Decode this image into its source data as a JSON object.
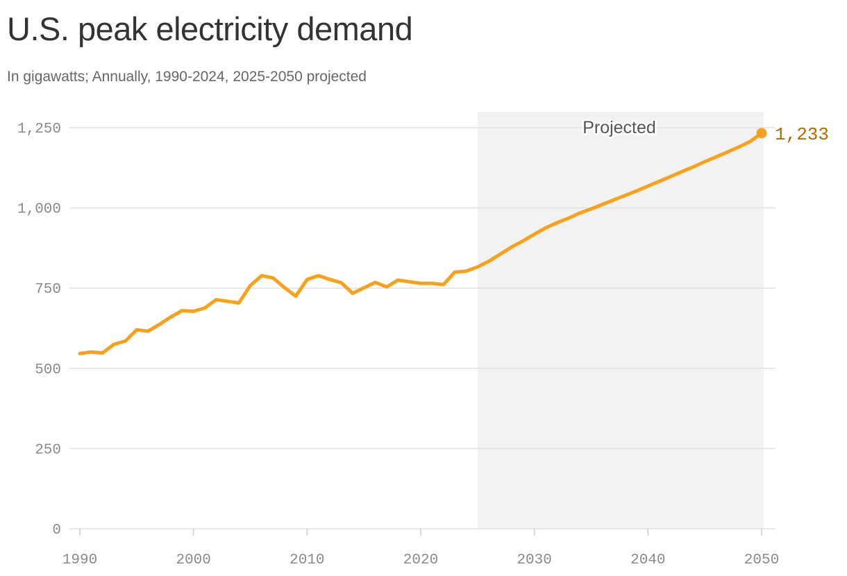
{
  "title": "U.S. peak electricity demand",
  "subtitle": "In gigawatts; Annually, 1990-2024, 2025-2050 projected",
  "colors": {
    "line": "#f9a11b",
    "end_label": "#b06a00",
    "band": "#f2f2f2",
    "grid": "#e2e2e2",
    "tick": "#8a8a8a"
  },
  "chart_data": {
    "type": "line",
    "series": [
      {
        "x": [
          1990,
          1991,
          1992,
          1993,
          1994,
          1995,
          1996,
          1997,
          1998,
          1999,
          2000,
          2001,
          2002,
          2003,
          2004,
          2005,
          2006,
          2007,
          2008,
          2009,
          2010,
          2011,
          2012,
          2013,
          2014,
          2015,
          2016,
          2017,
          2018,
          2019,
          2020,
          2021,
          2022,
          2023,
          2024,
          2025,
          2026,
          2027,
          2028,
          2029,
          2030,
          2031,
          2032,
          2033,
          2034,
          2035,
          2036,
          2037,
          2038,
          2039,
          2040,
          2041,
          2042,
          2043,
          2044,
          2045,
          2046,
          2047,
          2048,
          2049,
          2050
        ],
        "values": [
          546,
          551,
          548,
          575,
          585,
          620,
          616,
          637,
          660,
          680,
          678,
          688,
          714,
          709,
          704,
          758,
          789,
          782,
          752,
          725,
          777,
          789,
          777,
          767,
          734,
          751,
          768,
          754,
          775,
          770,
          765,
          765,
          761,
          800,
          803,
          816,
          834,
          856,
          878,
          897,
          918,
          938,
          954,
          968,
          984,
          997,
          1011,
          1025,
          1039,
          1053,
          1068,
          1083,
          1098,
          1113,
          1128,
          1144,
          1159,
          1174,
          1190,
          1207,
          1233
        ]
      }
    ],
    "projected_band": {
      "from": 2025,
      "to": 2050,
      "label": "Projected"
    },
    "end_label": "1,233",
    "x_ticks": [
      {
        "value": 1990,
        "label": "1990"
      },
      {
        "value": 2000,
        "label": "2000"
      },
      {
        "value": 2010,
        "label": "2010"
      },
      {
        "value": 2020,
        "label": "2020"
      },
      {
        "value": 2030,
        "label": "2030"
      },
      {
        "value": 2040,
        "label": "2040"
      },
      {
        "value": 2050,
        "label": "2050"
      }
    ],
    "y_ticks": [
      {
        "value": 0,
        "label": "0"
      },
      {
        "value": 250,
        "label": "250"
      },
      {
        "value": 500,
        "label": "500"
      },
      {
        "value": 750,
        "label": "750"
      },
      {
        "value": 1000,
        "label": "1,000"
      },
      {
        "value": 1250,
        "label": "1,250"
      }
    ],
    "xlim": [
      1990,
      2050
    ],
    "ylim": [
      0,
      1250
    ],
    "grid": true
  }
}
